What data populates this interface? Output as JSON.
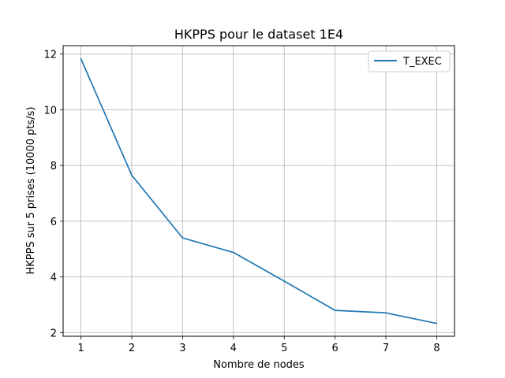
{
  "chart_data": {
    "type": "line",
    "title": "HKPPS pour le dataset 1E4",
    "xlabel": "Nombre de nodes",
    "ylabel": "HKPPS sur 5 prises (10000 pts/s)",
    "x": [
      1,
      2,
      3,
      4,
      5,
      6,
      7,
      8
    ],
    "xlim": [
      0.65,
      8.35
    ],
    "ylim": [
      1.87,
      12.3
    ],
    "xticks": [
      1,
      2,
      3,
      4,
      5,
      6,
      7,
      8
    ],
    "yticks": [
      2,
      4,
      6,
      8,
      10,
      12
    ],
    "grid": true,
    "legend_position": "top-right",
    "series": [
      {
        "name": "T_EXEC",
        "color": "#1f77b4",
        "values": [
          11.83,
          7.65,
          5.4,
          4.88,
          3.85,
          2.8,
          2.71,
          2.33
        ]
      }
    ]
  }
}
